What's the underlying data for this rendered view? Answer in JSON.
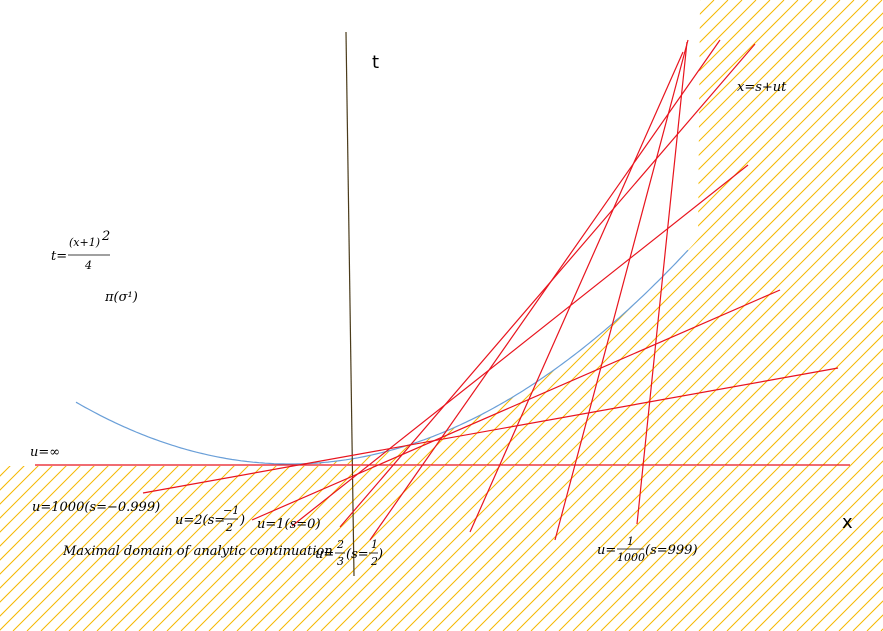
{
  "axes": {
    "t_label": "t",
    "x_label": "x"
  },
  "curve": {
    "equation_lhs": "t=",
    "equation_num": "(x+1)",
    "equation_exp": "2",
    "equation_den": "4",
    "projection_label": "π(σ¹)"
  },
  "family": {
    "label": "x=s+ut"
  },
  "lines": {
    "u_inf": "u=∞",
    "u_1000": "u=1000(s=−0.999)",
    "u_2_prefix": "u=2(s=",
    "u_2_num": "−1",
    "u_2_den": "2",
    "u_2_suffix": ")",
    "u_1": "u=1(s=0)",
    "u_23_prefix": "u=",
    "u_23_num": "2",
    "u_23_den": "3",
    "u_23_mid": "(s=",
    "u_23_snum": "1",
    "u_23_sden": "2",
    "u_23_suffix": ")",
    "u_small_prefix": "u=",
    "u_small_num": "1",
    "u_small_den": "1000",
    "u_small_suffix": "(s=999)"
  },
  "domain_label": "Maximal domain of analytic continuation",
  "colors": {
    "hatch": "#f5b800",
    "lines": "#e8141e",
    "curve": "#6a9fd8",
    "axis": "#4a3b1a"
  }
}
